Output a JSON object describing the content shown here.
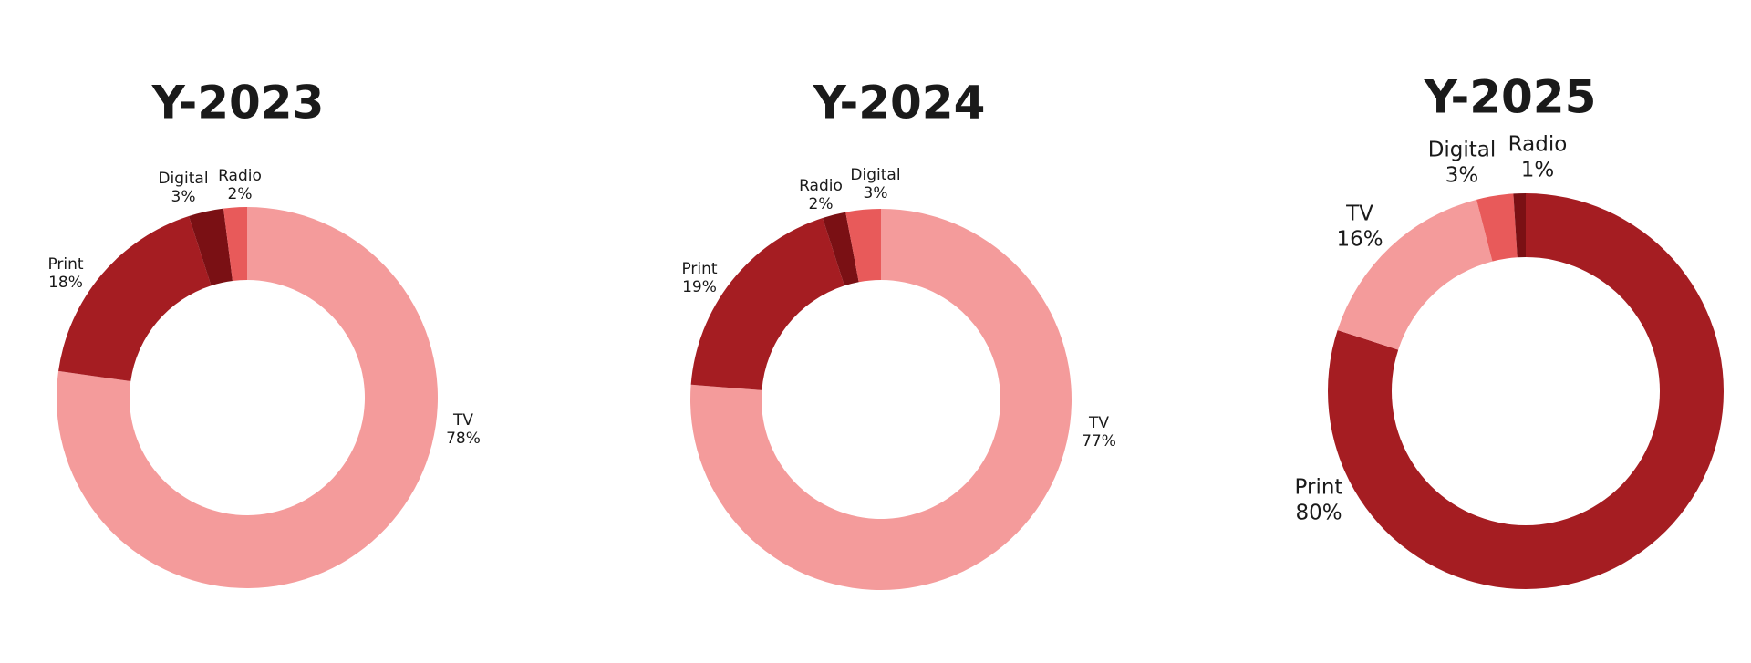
{
  "chart_data": [
    {
      "type": "donut",
      "title": "Y-2023",
      "categories": [
        "TV",
        "Print",
        "Digital",
        "Radio"
      ],
      "values": [
        78,
        18,
        3,
        2
      ],
      "value_labels": [
        "78%",
        "18%",
        "3%",
        "2%"
      ],
      "colors": [
        "#f49b9b",
        "#a51d22",
        "#7a1014",
        "#e85a5a"
      ]
    },
    {
      "type": "donut",
      "title": "Y-2024",
      "categories": [
        "TV",
        "Print",
        "Radio",
        "Digital"
      ],
      "values": [
        77,
        19,
        2,
        3
      ],
      "value_labels": [
        "77%",
        "19%",
        "2%",
        "3%"
      ],
      "colors": [
        "#f49b9b",
        "#a51d22",
        "#7a1014",
        "#e85a5a"
      ]
    },
    {
      "type": "donut",
      "title": "Y-2025",
      "categories": [
        "Print",
        "TV",
        "Digital",
        "Radio"
      ],
      "values": [
        80,
        16,
        3,
        1
      ],
      "value_labels": [
        "80%",
        "16%",
        "3%",
        "1%"
      ],
      "colors": [
        "#a51d22",
        "#f49b9b",
        "#e85a5a",
        "#7a1014"
      ]
    }
  ]
}
